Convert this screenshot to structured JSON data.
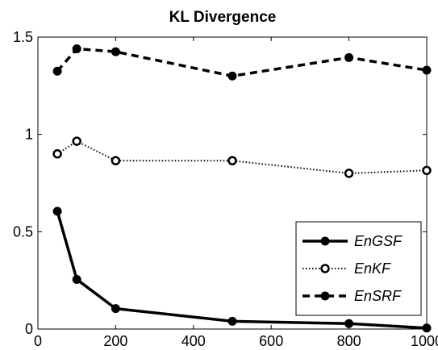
{
  "chart_data": {
    "type": "line",
    "title": "KL Divergence",
    "xlabel": "",
    "ylabel": "",
    "xlim": [
      0,
      1000
    ],
    "ylim": [
      0,
      1.5
    ],
    "xticks": [
      0,
      200,
      400,
      600,
      800,
      1000
    ],
    "yticks": [
      0,
      0.5,
      1,
      1.5
    ],
    "ytick_labels": [
      "0",
      "0.5",
      "1",
      "1.5"
    ],
    "grid": false,
    "legend_position": "bottom-right",
    "x": [
      50,
      100,
      200,
      500,
      800,
      1000
    ],
    "series": [
      {
        "name": "EnGSF",
        "values": [
          0.605,
          0.255,
          0.105,
          0.04,
          0.028,
          0.005
        ],
        "line_style": "solid",
        "marker": "filled-circle",
        "color": "#000000"
      },
      {
        "name": "EnKF",
        "values": [
          0.9,
          0.965,
          0.865,
          0.865,
          0.8,
          0.815
        ],
        "line_style": "dotted",
        "marker": "open-circle",
        "color": "#000000"
      },
      {
        "name": "EnSRF",
        "values": [
          1.325,
          1.44,
          1.425,
          1.3,
          1.395,
          1.33
        ],
        "line_style": "dashed",
        "marker": "filled-circle",
        "color": "#000000"
      }
    ]
  }
}
